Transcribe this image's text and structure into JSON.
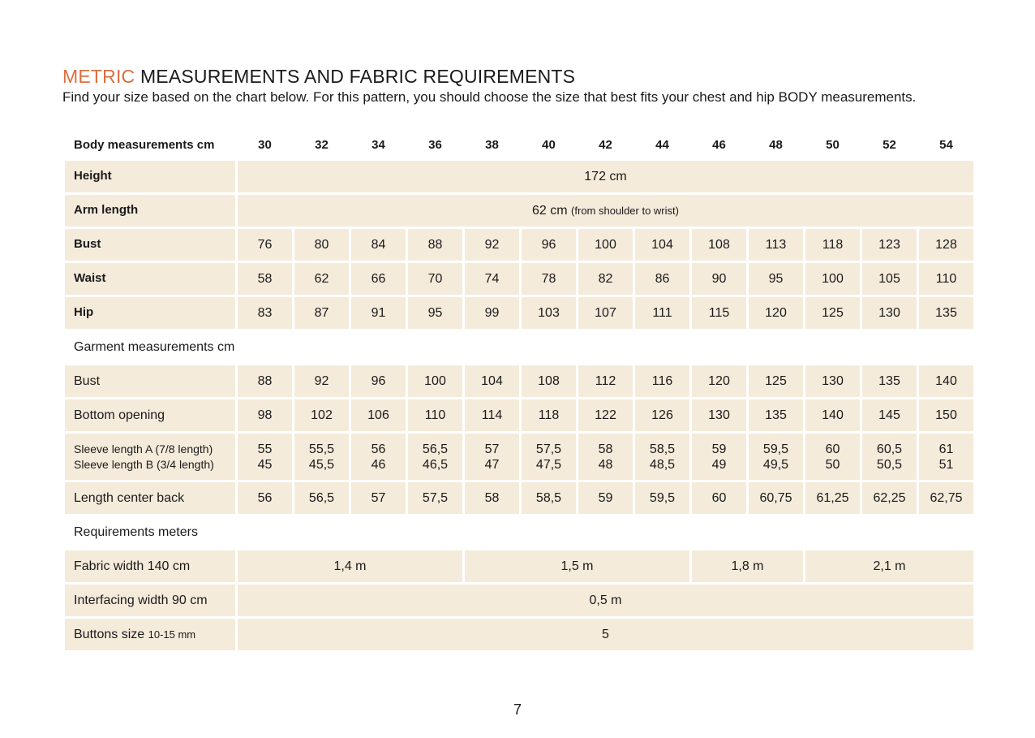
{
  "header": {
    "title_highlight": "METRIC",
    "title": "MEASUREMENTS AND FABRIC REQUIREMENTS",
    "intro": "Find your size based on the chart below. For this pattern, you should choose the size that best fits your chest and hip BODY measurements."
  },
  "body_table": {
    "label": "Body measurements cm",
    "sizes": [
      30,
      32,
      34,
      36,
      38,
      40,
      42,
      44,
      46,
      48,
      50,
      52,
      54
    ],
    "height": {
      "label": "Height",
      "value": "172 cm"
    },
    "arm_length": {
      "label": "Arm length",
      "value": "62 cm",
      "note": "(from shoulder to wrist)"
    },
    "rows": [
      {
        "label": "Bust",
        "values": [
          76,
          80,
          84,
          88,
          92,
          96,
          100,
          104,
          108,
          113,
          118,
          123,
          128
        ]
      },
      {
        "label": "Waist",
        "values": [
          58,
          62,
          66,
          70,
          74,
          78,
          82,
          86,
          90,
          95,
          100,
          105,
          110
        ]
      },
      {
        "label": "Hip",
        "values": [
          83,
          87,
          91,
          95,
          99,
          103,
          107,
          111,
          115,
          120,
          125,
          130,
          135
        ]
      }
    ]
  },
  "garment_table": {
    "label": "Garment measurements cm",
    "rows": [
      {
        "label": "Bust",
        "values": [
          88,
          92,
          96,
          100,
          104,
          108,
          112,
          116,
          120,
          125,
          130,
          135,
          140
        ]
      },
      {
        "label": "Bottom opening",
        "values": [
          98,
          102,
          106,
          110,
          114,
          118,
          122,
          126,
          130,
          135,
          140,
          145,
          150
        ]
      },
      {
        "label_a": "Sleeve length  A (7/8 length)",
        "label_b": "Sleeve length B (3/4 length)",
        "values_a": [
          55,
          "55,5",
          56,
          "56,5",
          57,
          "57,5",
          58,
          "58,5",
          59,
          "59,5",
          60,
          "60,5",
          61
        ],
        "values_b": [
          45,
          "45,5",
          46,
          "46,5",
          47,
          "47,5",
          48,
          "48,5",
          49,
          "49,5",
          50,
          "50,5",
          51
        ]
      },
      {
        "label": "Length center back",
        "values": [
          56,
          "56,5",
          57,
          "57,5",
          58,
          "58,5",
          59,
          "59,5",
          60,
          "60,75",
          "61,25",
          "62,25",
          "62,75"
        ]
      }
    ]
  },
  "requirements": {
    "label": "Requirements meters",
    "fabric": {
      "label": "Fabric width 140 cm",
      "values": [
        "1,4 m",
        "1,5 m",
        "1,8 m",
        "2,1 m"
      ]
    },
    "interfacing": {
      "label": "Interfacing width 90 cm",
      "value": "0,5 m"
    },
    "buttons": {
      "label": "Buttons size",
      "note": "10-15 mm",
      "value": "5"
    }
  },
  "page_number": "7"
}
